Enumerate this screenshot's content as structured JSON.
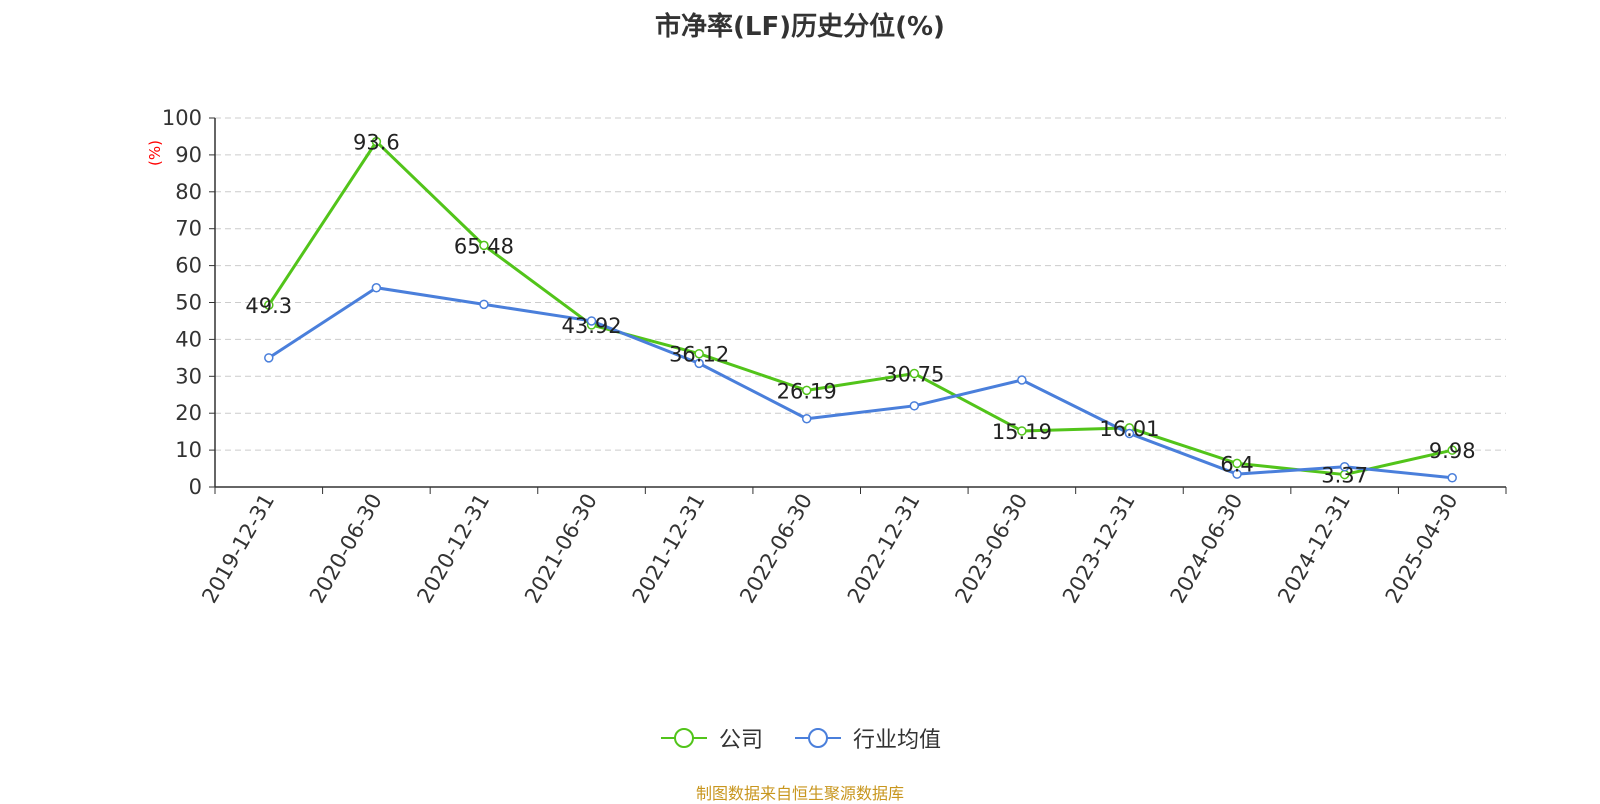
{
  "colors": {
    "company": "#52c41a",
    "industry": "#4a7fdb",
    "source": "#c8961e",
    "ylabel": "#ff0000"
  },
  "source_text": "制图数据来自恒生聚源数据库",
  "chart_data": {
    "type": "line",
    "title": "市净率(LF)历史分位(%)",
    "ylabel": "(%)",
    "xlabel": "",
    "ylim": [
      0,
      100
    ],
    "yticks": [
      0,
      10,
      20,
      30,
      40,
      50,
      60,
      70,
      80,
      90,
      100
    ],
    "grid": true,
    "legend_position": "bottom",
    "categories": [
      "2019-12-31",
      "2020-06-30",
      "2020-12-31",
      "2021-06-30",
      "2021-12-31",
      "2022-06-30",
      "2022-12-31",
      "2023-06-30",
      "2023-12-31",
      "2024-06-30",
      "2024-12-31",
      "2025-04-30"
    ],
    "series": [
      {
        "name": "公司",
        "values": [
          49.3,
          93.6,
          65.48,
          43.92,
          36.12,
          26.19,
          30.75,
          15.19,
          16.01,
          6.4,
          3.37,
          9.98
        ],
        "data_labels": [
          "49.3",
          "93.6",
          "65.48",
          "43.92",
          "36.12",
          "26.19",
          "30.75",
          "15.19",
          "16.01",
          "6.4",
          "3.37",
          "9.98"
        ]
      },
      {
        "name": "行业均值",
        "values": [
          35,
          54,
          49.5,
          45,
          33.5,
          18.5,
          22,
          29,
          14.5,
          3.5,
          5.5,
          2.5
        ]
      }
    ]
  }
}
